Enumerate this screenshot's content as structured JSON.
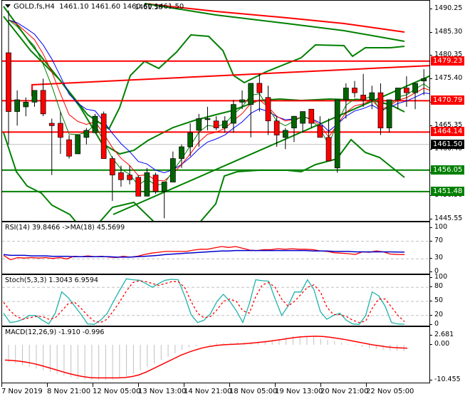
{
  "header": {
    "symbol": "GOLD.fs,H4",
    "ohlc": "1461.10 1461.60 1460.60 1461.50",
    "label_top_left": "1461.50"
  },
  "colors": {
    "bull": "#006400",
    "bear": "#ff0000",
    "resistance": "#ff0000",
    "support": "#008000",
    "bollinger": "#008000",
    "ma_blue": "#0000ff",
    "ma_red": "#ff0000",
    "ma_green": "#008000",
    "rsi": "#ff0000",
    "rsi_ma": "#0000cc",
    "stoch_main": "#20b2aa",
    "stoch_signal": "#ff0000",
    "macd_hist": "#c0c0c0",
    "macd_signal": "#ff0000",
    "bid_line": "#c0c0c0"
  },
  "price_axis": {
    "ticks": [
      "1490.25",
      "1485.30",
      "1480.35",
      "1475.40",
      "1470.45",
      "1465.35",
      "1460.40",
      "1455.45",
      "1450.50",
      "1445.55"
    ],
    "tags": [
      {
        "label": "1479.23",
        "type": "resistance"
      },
      {
        "label": "1470.79",
        "type": "resistance"
      },
      {
        "label": "1464.14",
        "type": "resistance"
      },
      {
        "label": "1461.50",
        "type": "bid"
      },
      {
        "label": "1456.05",
        "type": "support"
      },
      {
        "label": "1451.48",
        "type": "support"
      }
    ]
  },
  "rsi_panel": {
    "title": "RSI(14) 39.8466  ->MA(18) 45.5699",
    "ticks": [
      "100",
      "70",
      "30",
      "0"
    ]
  },
  "stoch_panel": {
    "title": "Stoch(5,3,3) 1.3043 6.9594",
    "ticks": [
      "100",
      "80",
      "50",
      "20",
      "0"
    ]
  },
  "macd_panel": {
    "title": "MACD(12,26,9) -1.910 -0.996",
    "ticks": [
      "2.681",
      "0.00",
      "-10.455"
    ]
  },
  "time_axis": {
    "labels": [
      "7 Nov 2019",
      "8 Nov 21:00",
      "12 Nov 05:00",
      "13 Nov 13:00",
      "14 Nov 21:00",
      "18 Nov 05:00",
      "19 Nov 13:00",
      "20 Nov 21:00",
      "22 Nov 05:00"
    ]
  },
  "chart_data": [
    {
      "type": "candlestick",
      "title": "GOLD.fs,H4",
      "last_ohlc": {
        "open": 1461.1,
        "high": 1461.6,
        "low": 1460.6,
        "close": 1461.5
      },
      "ylim": [
        1443.5,
        1492.0
      ],
      "y_ticks": [
        1490.25,
        1485.3,
        1480.35,
        1475.4,
        1470.45,
        1465.35,
        1460.4,
        1455.45,
        1450.5,
        1445.55
      ],
      "x_labels": [
        "7 Nov 2019",
        "8 Nov 21:00",
        "12 Nov 05:00",
        "13 Nov 13:00",
        "14 Nov 21:00",
        "18 Nov 05:00",
        "19 Nov 13:00",
        "20 Nov 21:00",
        "22 Nov 05:00"
      ],
      "horizontal_levels": {
        "resistance": [
          1479.23,
          1470.79,
          1464.14
        ],
        "support": [
          1456.05,
          1451.48
        ],
        "bid": 1461.5
      },
      "trendlines": [
        {
          "name": "rising-resistance",
          "color": "red",
          "from": [
            42,
            1474.4
          ],
          "to": [
            604,
            1478.6
          ]
        },
        {
          "name": "rising-support",
          "color": "green",
          "from": [
            156,
            1446.8
          ],
          "to": [
            604,
            1476.0
          ]
        }
      ],
      "candles": [
        [
          1481.0,
          1490.0,
          1461.5,
          1468.5
        ],
        [
          1468.5,
          1473.0,
          1465.5,
          1471.0
        ],
        [
          1469.5,
          1471.5,
          1467.5,
          1470.5
        ],
        [
          1470.5,
          1473.0,
          1469.5,
          1473.0
        ],
        [
          1473.0,
          1475.5,
          1467.5,
          1468.0
        ],
        [
          1466.0,
          1467.0,
          1455.0,
          1465.5
        ],
        [
          1466.0,
          1468.5,
          1459.5,
          1463.0
        ],
        [
          1462.5,
          1463.5,
          1458.5,
          1459.0
        ],
        [
          1459.5,
          1463.5,
          1459.5,
          1463.5
        ],
        [
          1463.0,
          1465.0,
          1461.5,
          1464.5
        ],
        [
          1464.0,
          1468.0,
          1464.0,
          1467.5
        ],
        [
          1468.0,
          1468.5,
          1458.5,
          1458.5
        ],
        [
          1458.5,
          1459.0,
          1449.5,
          1455.0
        ],
        [
          1455.5,
          1457.0,
          1452.5,
          1454.0
        ],
        [
          1455.0,
          1457.0,
          1453.0,
          1454.0
        ],
        [
          1454.5,
          1455.0,
          1450.5,
          1450.5
        ],
        [
          1450.5,
          1456.5,
          1450.5,
          1455.5
        ],
        [
          1455.0,
          1455.5,
          1451.0,
          1451.5
        ],
        [
          1451.5,
          1453.5,
          1445.8,
          1453.5
        ],
        [
          1453.5,
          1460.0,
          1453.5,
          1458.5
        ],
        [
          1458.5,
          1461.5,
          1456.5,
          1461.0
        ],
        [
          1461.0,
          1466.0,
          1459.0,
          1464.0
        ],
        [
          1464.5,
          1468.0,
          1461.0,
          1467.0
        ],
        [
          1467.0,
          1469.5,
          1464.5,
          1467.0
        ],
        [
          1466.5,
          1467.5,
          1464.5,
          1465.0
        ],
        [
          1465.0,
          1467.5,
          1464.0,
          1466.5
        ],
        [
          1466.0,
          1471.0,
          1464.0,
          1470.0
        ],
        [
          1470.5,
          1473.0,
          1469.0,
          1471.0
        ],
        [
          1470.0,
          1474.5,
          1463.0,
          1474.5
        ],
        [
          1474.5,
          1476.5,
          1468.5,
          1472.5
        ],
        [
          1471.5,
          1474.0,
          1463.5,
          1466.5
        ],
        [
          1466.5,
          1467.5,
          1461.0,
          1463.5
        ],
        [
          1463.0,
          1465.0,
          1460.5,
          1464.5
        ],
        [
          1465.0,
          1466.5,
          1462.0,
          1467.5
        ],
        [
          1466.0,
          1468.0,
          1464.0,
          1468.5
        ],
        [
          1469.0,
          1469.0,
          1465.0,
          1466.0
        ],
        [
          1465.5,
          1467.5,
          1463.5,
          1463.0
        ],
        [
          1463.0,
          1467.0,
          1459.5,
          1458.0
        ],
        [
          1456.5,
          1467.0,
          1455.5,
          1471.0
        ],
        [
          1471.0,
          1474.5,
          1467.0,
          1473.5
        ],
        [
          1473.5,
          1475.0,
          1471.5,
          1472.5
        ],
        [
          1472.0,
          1476.5,
          1469.5,
          1471.0
        ],
        [
          1471.0,
          1474.0,
          1469.0,
          1472.5
        ],
        [
          1472.5,
          1474.5,
          1463.5,
          1465.0
        ],
        [
          1465.0,
          1471.0,
          1464.0,
          1471.0
        ],
        [
          1471.0,
          1473.0,
          1469.0,
          1473.5
        ],
        [
          1473.5,
          1476.0,
          1469.5,
          1472.5
        ],
        [
          1472.5,
          1474.5,
          1469.0,
          1474.5
        ],
        [
          1475.0,
          1477.5,
          1472.0,
          1475.5
        ],
        [
          1475.5,
          1476.5,
          1464.5,
          1471.5
        ],
        [
          1471.0,
          1474.5,
          1462.0,
          1469.0
        ],
        [
          1469.0,
          1471.5,
          1467.0,
          1470.5
        ],
        [
          1471.0,
          1472.0,
          1467.5,
          1468.5
        ],
        [
          1469.0,
          1470.5,
          1465.5,
          1465.5
        ],
        [
          1465.5,
          1472.5,
          1463.5,
          1465.0
        ],
        [
          1466.5,
          1467.5,
          1461.5,
          1462.5
        ],
        [
          1462.5,
          1465.5,
          1461.0,
          1463.5
        ],
        [
          1463.5,
          1463.5,
          1462.0,
          1463.5
        ],
        [
          1463.5,
          1466.5,
          1463.5,
          1466.0
        ],
        [
          1470.0,
          1472.5,
          1462.0,
          1466.5
        ],
        [
          1470.0,
          1472.0,
          1462.5,
          1465.0
        ],
        [
          1465.5,
          1466.0,
          1460.5,
          1462.0
        ],
        [
          1462.5,
          1463.0,
          1460.5,
          1461.0
        ],
        [
          1461.0,
          1462.5,
          1459.5,
          1460.5
        ],
        [
          1461.1,
          1461.6,
          1460.6,
          1461.5
        ]
      ]
    },
    {
      "type": "line",
      "title": "RSI(14) 39.8466 ->MA(18) 45.5699",
      "ylim": [
        0,
        100
      ],
      "y_ticks": [
        100,
        70,
        30,
        0
      ],
      "levels": [
        70,
        30
      ],
      "series": [
        {
          "name": "RSI(14)",
          "last": 39.8466,
          "values": [
            38,
            28,
            33,
            32,
            33,
            32,
            33,
            31,
            33,
            30,
            36,
            35,
            37,
            35,
            36,
            34,
            33,
            36,
            34,
            36,
            40,
            43,
            45,
            47,
            47,
            47,
            47,
            50,
            52,
            52,
            55,
            58,
            56,
            58,
            54,
            50,
            49,
            51,
            51,
            53,
            52,
            53,
            52,
            52,
            51,
            48,
            47,
            44,
            43,
            42,
            40,
            46,
            45,
            48,
            46,
            41,
            40,
            39.85
          ]
        },
        {
          "name": "MA(18)",
          "last": 45.5699,
          "values": [
            40,
            38,
            38,
            38,
            37,
            37,
            37,
            36,
            36,
            36,
            35,
            35,
            35,
            35,
            35,
            35,
            34,
            34,
            34,
            35,
            36,
            37,
            38,
            40,
            41,
            42,
            43,
            44,
            45,
            46,
            47,
            48,
            48,
            49,
            49,
            49,
            49,
            49,
            49,
            49,
            49,
            49,
            49,
            49,
            48,
            48,
            48,
            47,
            47,
            47,
            46,
            46,
            46,
            46,
            46,
            46,
            45.6,
            45.57
          ]
        }
      ]
    },
    {
      "type": "line",
      "title": "Stoch(5,3,3) 1.3043 6.9594",
      "ylim": [
        0,
        100
      ],
      "y_ticks": [
        100,
        80,
        50,
        20,
        0
      ],
      "levels": [
        80,
        50,
        20
      ],
      "series": [
        {
          "name": "%K",
          "last": 1.3043,
          "values": [
            25,
            5,
            7,
            12,
            20,
            20,
            10,
            2,
            25,
            70,
            58,
            40,
            22,
            2,
            1,
            10,
            24,
            50,
            75,
            98,
            96,
            95,
            88,
            80,
            88,
            95,
            97,
            96,
            62,
            22,
            5,
            10,
            24,
            50,
            65,
            50,
            30,
            5,
            45,
            96,
            94,
            93,
            55,
            20,
            40,
            70,
            70,
            96,
            75,
            28,
            12,
            20,
            25,
            10,
            2,
            1,
            20,
            70,
            62,
            40,
            5,
            2,
            1.3
          ]
        },
        {
          "name": "%D",
          "last": 6.9594,
          "values": [
            48,
            30,
            18,
            12,
            15,
            18,
            18,
            12,
            15,
            30,
            45,
            48,
            35,
            20,
            8,
            5,
            12,
            30,
            50,
            72,
            90,
            94,
            92,
            88,
            84,
            88,
            92,
            92,
            80,
            50,
            25,
            15,
            18,
            32,
            50,
            55,
            50,
            30,
            25,
            60,
            85,
            90,
            80,
            55,
            40,
            50,
            65,
            80,
            85,
            70,
            38,
            22,
            22,
            18,
            10,
            5,
            8,
            35,
            55,
            55,
            38,
            20,
            6.96
          ]
        }
      ]
    },
    {
      "type": "bar+line",
      "title": "MACD(12,26,9) -1.910 -0.996",
      "ylim": [
        -10.455,
        2.681
      ],
      "y_ticks": [
        2.681,
        0.0,
        -10.455
      ],
      "series": [
        {
          "name": "MACD histogram",
          "last": -1.91,
          "values": [
            -5,
            -5.5,
            -6,
            -6.5,
            -7,
            -7.5,
            -8,
            -8.5,
            -9,
            -9.5,
            -10,
            -10.2,
            -10.4,
            -10.4,
            -10.3,
            -10.2,
            -9.8,
            -9.3,
            -8.5,
            -7.5,
            -6.5,
            -5.5,
            -4.5,
            -3.5,
            -2.5,
            -1.5,
            -0.8,
            -0.3,
            0.0,
            0.2,
            0.4,
            0.5,
            0.6,
            0.7,
            0.8,
            0.8,
            1.0,
            1.2,
            1.4,
            1.8,
            2.2,
            2.5,
            2.6,
            2.5,
            2.2,
            1.8,
            1.4,
            1.0,
            0.6,
            0.2,
            -0.3,
            -0.7,
            -1.0,
            -1.3,
            -1.5,
            -1.7,
            -1.8,
            -1.91
          ]
        },
        {
          "name": "Signal",
          "last": -0.996,
          "values": [
            -4.5,
            -4.6,
            -4.8,
            -5.1,
            -5.5,
            -6.0,
            -6.6,
            -7.2,
            -7.8,
            -8.4,
            -8.9,
            -9.3,
            -9.6,
            -9.7,
            -9.7,
            -9.7,
            -9.7,
            -9.6,
            -9.3,
            -8.8,
            -8.0,
            -7.0,
            -6.0,
            -5.0,
            -4.0,
            -3.0,
            -2.2,
            -1.5,
            -0.9,
            -0.5,
            -0.2,
            0.0,
            0.1,
            0.2,
            0.3,
            0.5,
            0.7,
            0.9,
            1.2,
            1.5,
            1.8,
            2.1,
            2.3,
            2.4,
            2.5,
            2.4,
            2.2,
            1.9,
            1.6,
            1.2,
            0.8,
            0.4,
            0.0,
            -0.3,
            -0.6,
            -0.8,
            -0.9,
            -1.0
          ]
        }
      ]
    }
  ]
}
